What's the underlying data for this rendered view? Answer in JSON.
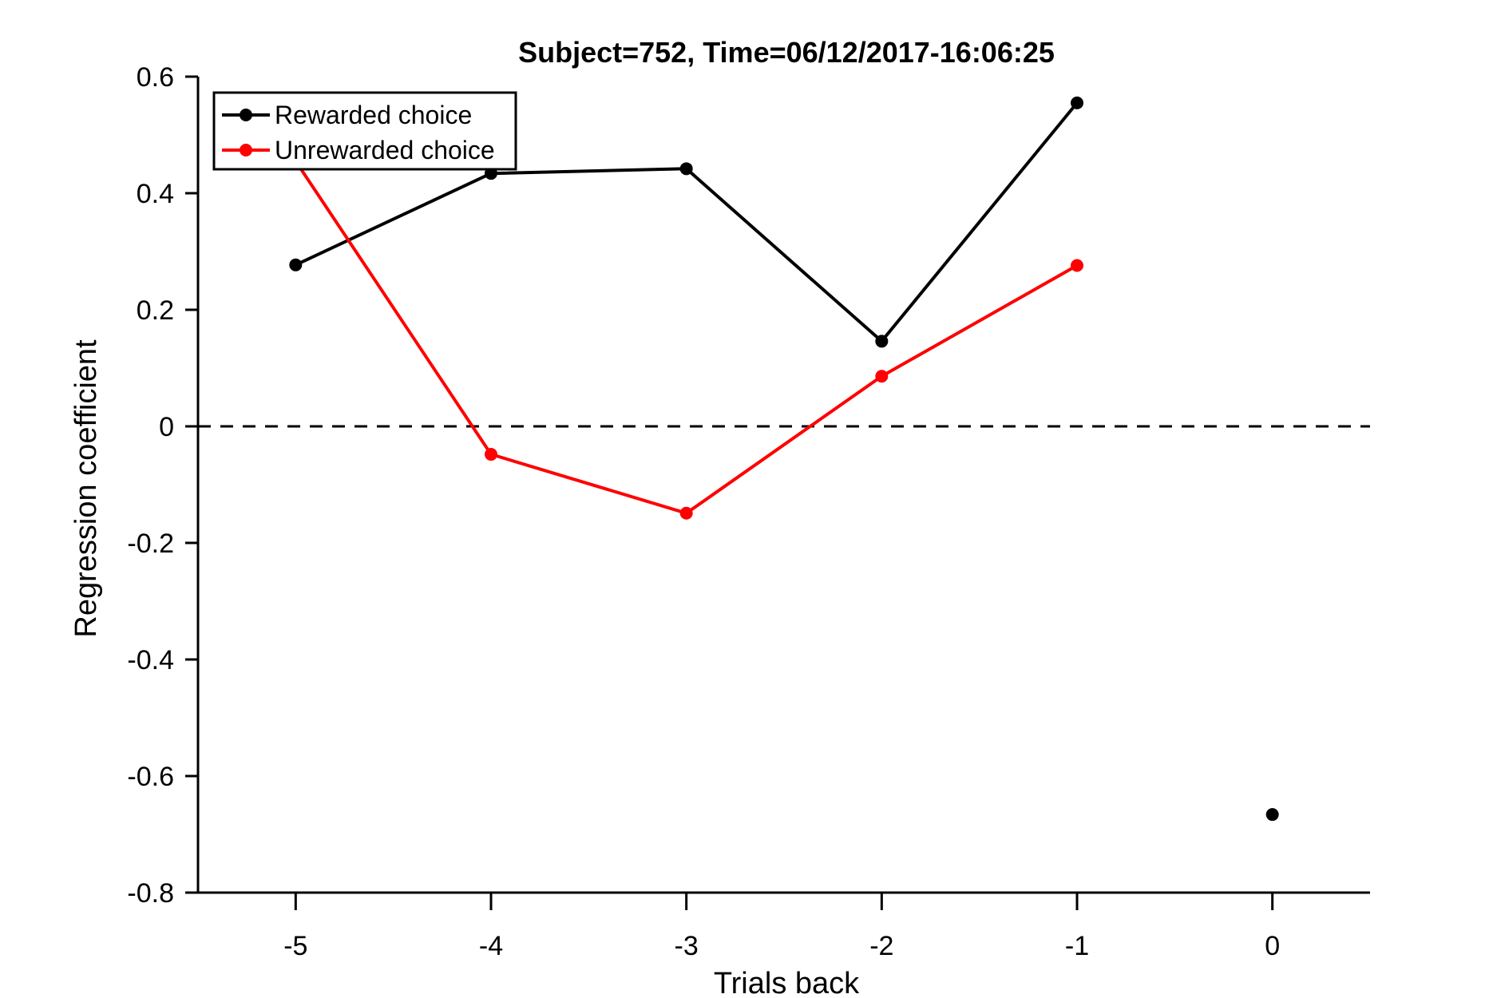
{
  "chart_data": {
    "type": "line",
    "title": "Subject=752, Time=06/12/2017-16:06:25",
    "xlabel": "Trials back",
    "ylabel": "Regression coefficient",
    "xlim": [
      -5.5,
      0.5
    ],
    "ylim": [
      -0.8,
      0.6
    ],
    "x_ticks": [
      -5,
      -4,
      -3,
      -2,
      -1,
      0
    ],
    "x_tick_labels": [
      "-5",
      "-4",
      "-3",
      "-2",
      "-1",
      "0"
    ],
    "y_ticks": [
      -0.8,
      -0.6,
      -0.4,
      -0.2,
      0,
      0.2,
      0.4,
      0.6
    ],
    "y_tick_labels": [
      "-0.8",
      "-0.6",
      "-0.4",
      "-0.2",
      "0",
      "0.2",
      "0.4",
      "0.6"
    ],
    "grid": false,
    "legend_position": "top-left",
    "reference_line": {
      "y": 0,
      "style": "dashed",
      "color": "#000000"
    },
    "series": [
      {
        "name": "Rewarded choice",
        "color": "#000000",
        "x": [
          -5,
          -4,
          -3,
          -2,
          -1
        ],
        "y": [
          0.277,
          0.434,
          0.442,
          0.146,
          0.555
        ]
      },
      {
        "name": "Unrewarded choice",
        "color": "#ff0000",
        "x": [
          -5,
          -4,
          -3,
          -2,
          -1
        ],
        "y": [
          0.455,
          -0.048,
          -0.149,
          0.086,
          0.276
        ]
      }
    ],
    "extra_points": [
      {
        "x": 0,
        "y": -0.666,
        "color": "#000000"
      }
    ]
  }
}
